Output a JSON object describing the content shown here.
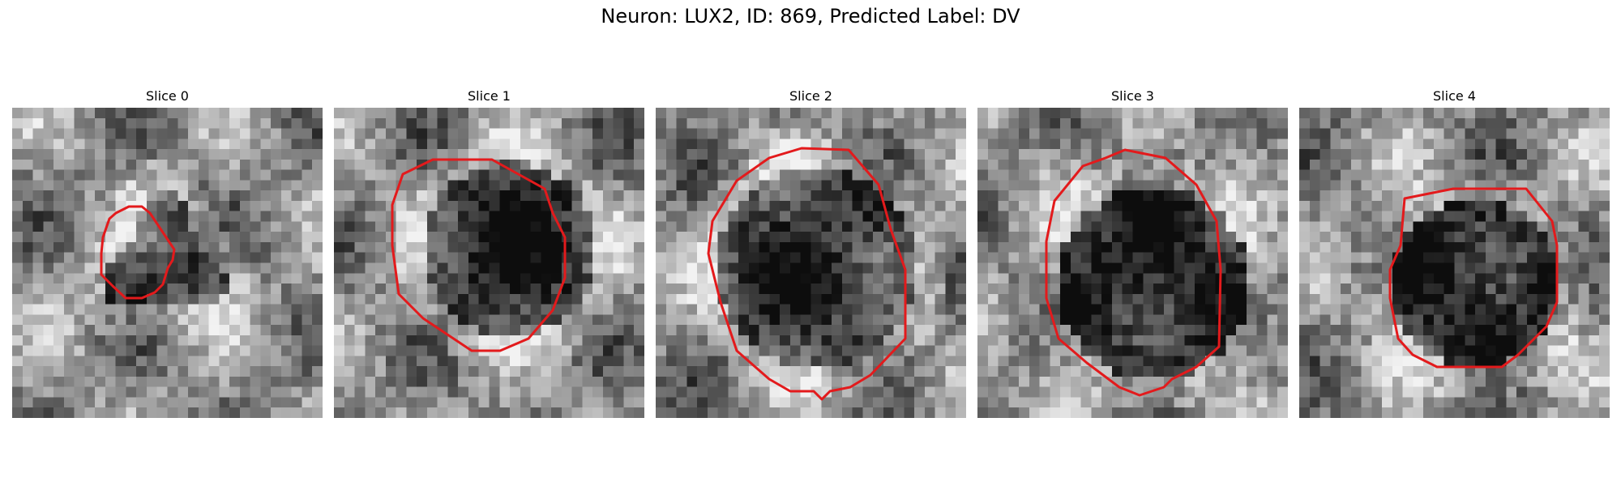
{
  "figure": {
    "title": "Neuron: LUX2, ID: 869, Predicted Label: DV",
    "contour_color": "#e31a1c",
    "colormap": "gray",
    "panels": [
      {
        "title": "Slice 0",
        "seed": 11,
        "shape": "irregular",
        "center": [
          0.47,
          0.48
        ],
        "radius": 0.2,
        "darkness": 0.35
      },
      {
        "title": "Slice 1",
        "seed": 23,
        "shape": "round",
        "center": [
          0.55,
          0.44
        ],
        "radius": 0.28,
        "darkness": 0.45
      },
      {
        "title": "Slice 2",
        "seed": 37,
        "shape": "round",
        "center": [
          0.5,
          0.5
        ],
        "radius": 0.32,
        "darkness": 0.4
      },
      {
        "title": "Slice 3",
        "seed": 51,
        "shape": "round",
        "center": [
          0.55,
          0.55
        ],
        "radius": 0.31,
        "darkness": 0.5
      },
      {
        "title": "Slice 4",
        "seed": 67,
        "shape": "round",
        "center": [
          0.55,
          0.55
        ],
        "radius": 0.27,
        "darkness": 0.5
      }
    ]
  }
}
